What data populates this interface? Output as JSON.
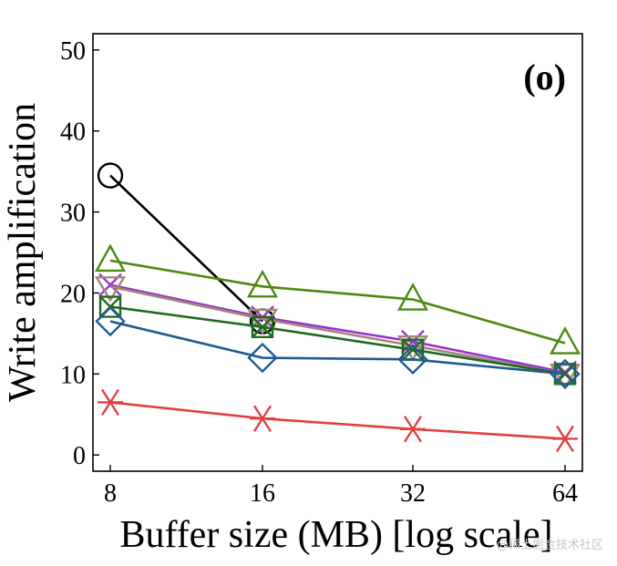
{
  "chart_data": {
    "type": "line",
    "panel_label": "(o)",
    "xlabel": "Buffer size (MB) [log scale]",
    "ylabel": "Write amplification",
    "x_scale": "log2",
    "x": [
      8,
      16,
      32,
      64
    ],
    "x_tick_labels": [
      "8",
      "16",
      "32",
      "64"
    ],
    "ylim": [
      -2,
      52
    ],
    "y_ticks": [
      0,
      10,
      20,
      30,
      40,
      50
    ],
    "grid": false,
    "series": [
      {
        "marker": "circle",
        "color": "#000000",
        "values": [
          34.5,
          16.5,
          null,
          null
        ]
      },
      {
        "marker": "triangle",
        "color": "#4a8a10",
        "values": [
          24.0,
          20.8,
          19.2,
          13.8
        ]
      },
      {
        "marker": "x",
        "color": "#9b30d0",
        "values": [
          21.0,
          17.0,
          14.0,
          10.2
        ]
      },
      {
        "marker": "triangle-down",
        "color": "#a08878",
        "values": [
          20.8,
          16.8,
          13.5,
          10.0
        ]
      },
      {
        "marker": "square-x",
        "color": "#1e6b1e",
        "values": [
          18.3,
          15.8,
          13.0,
          10.0
        ]
      },
      {
        "marker": "diamond",
        "color": "#1f5a94",
        "values": [
          16.5,
          12.0,
          11.8,
          10.0
        ]
      },
      {
        "marker": "asterisk",
        "color": "#e24040",
        "values": [
          6.5,
          4.5,
          3.2,
          2.0
        ]
      }
    ]
  },
  "watermark": "@稀土掘金技术社区"
}
